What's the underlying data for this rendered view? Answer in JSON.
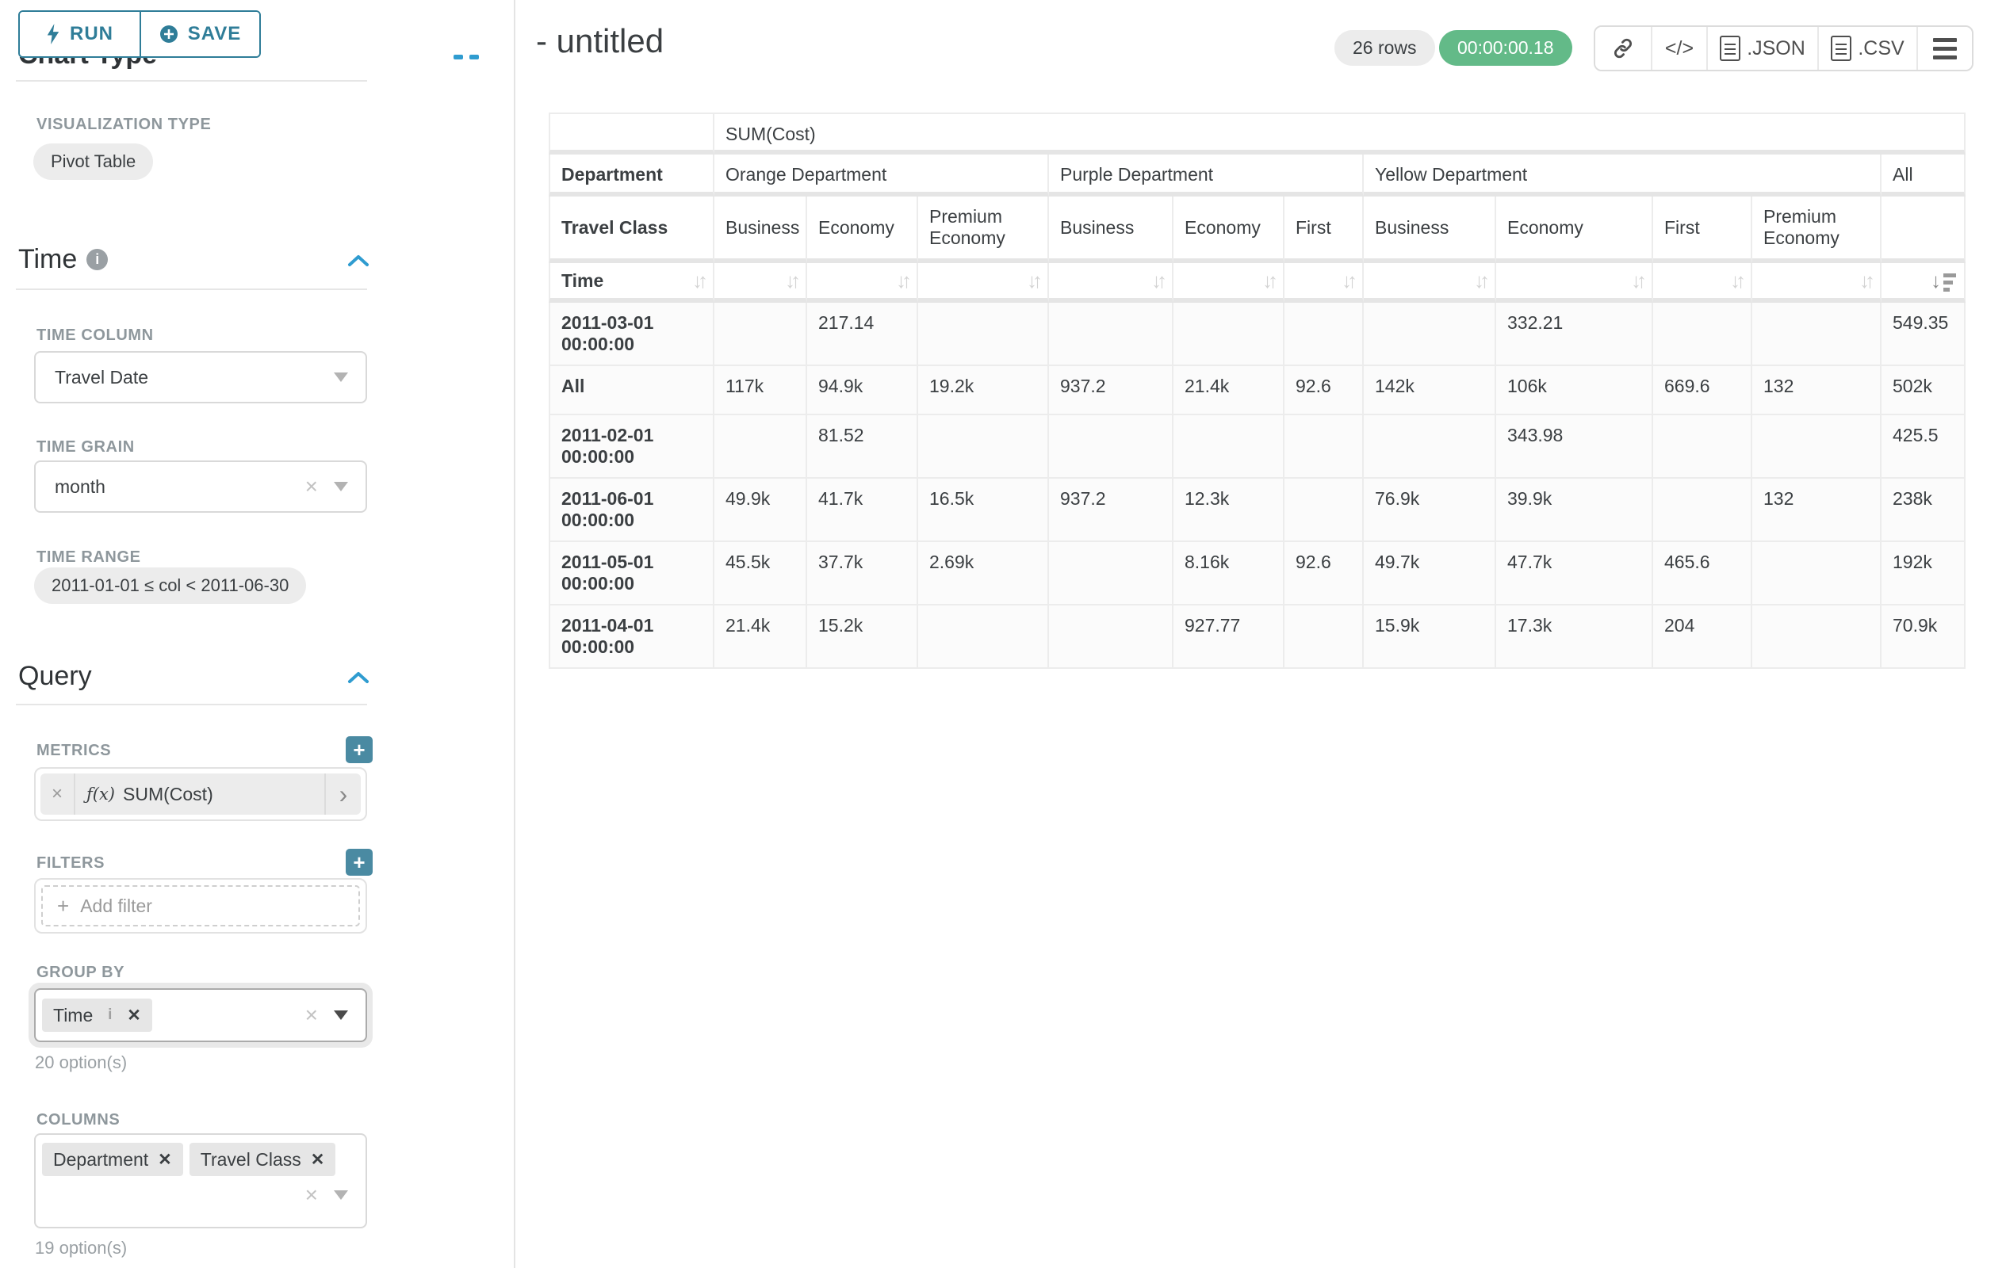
{
  "colors": {
    "accent_teal": "#2f7d98",
    "plus_teal": "#4a8aa2",
    "timer_green": "#63ba88",
    "chevron_blue": "#2f9cd0"
  },
  "sidebar": {
    "run_label": "RUN",
    "save_label": "SAVE",
    "scrolled_heading": "Chart Type",
    "viz": {
      "label": "VISUALIZATION TYPE",
      "value": "Pivot Table"
    },
    "time": {
      "heading": "Time",
      "column_label": "TIME COLUMN",
      "column_value": "Travel Date",
      "grain_label": "TIME GRAIN",
      "grain_value": "month",
      "range_label": "TIME RANGE",
      "range_value": "2011-01-01 ≤ col < 2011-06-30"
    },
    "query": {
      "heading": "Query",
      "metrics_label": "METRICS",
      "metric_fx": "ƒ(x)",
      "metric_value": "SUM(Cost)",
      "filters_label": "FILTERS",
      "add_filter": "Add filter",
      "group_by_label": "GROUP BY",
      "group_by_tags": [
        "Time"
      ],
      "group_by_hint": "20 option(s)",
      "columns_label": "COLUMNS",
      "columns_tags": [
        "Department",
        "Travel Class"
      ],
      "columns_hint": "19 option(s)"
    }
  },
  "header": {
    "title": "- untitled",
    "rows_badge": "26 rows",
    "timer": "00:00:00.18",
    "code_label": "</>",
    "json_label": ".JSON",
    "csv_label": ".CSV"
  },
  "table": {
    "metric_header": "SUM(Cost)",
    "corner": {
      "department": "Department",
      "travel_class": "Travel Class",
      "time": "Time"
    },
    "groups": [
      {
        "label": "Orange Department",
        "classes": [
          "Business",
          "Economy",
          "Premium Economy"
        ]
      },
      {
        "label": "Purple Department",
        "classes": [
          "Business",
          "Economy",
          "First"
        ]
      },
      {
        "label": "Yellow Department",
        "classes": [
          "Business",
          "Economy",
          "First",
          "Premium Economy"
        ]
      },
      {
        "label": "All",
        "classes": [
          ""
        ]
      }
    ],
    "rows": [
      {
        "label": "2011-03-01 00:00:00",
        "values": [
          "",
          "217.14",
          "",
          "",
          "",
          "",
          "",
          "332.21",
          "",
          "",
          "549.35"
        ]
      },
      {
        "label": "All",
        "values": [
          "117k",
          "94.9k",
          "19.2k",
          "937.2",
          "21.4k",
          "92.6",
          "142k",
          "106k",
          "669.6",
          "132",
          "502k"
        ]
      },
      {
        "label": "2011-02-01 00:00:00",
        "values": [
          "",
          "81.52",
          "",
          "",
          "",
          "",
          "",
          "343.98",
          "",
          "",
          "425.5"
        ]
      },
      {
        "label": "2011-06-01 00:00:00",
        "values": [
          "49.9k",
          "41.7k",
          "16.5k",
          "937.2",
          "12.3k",
          "",
          "76.9k",
          "39.9k",
          "",
          "132",
          "238k"
        ]
      },
      {
        "label": "2011-05-01 00:00:00",
        "values": [
          "45.5k",
          "37.7k",
          "2.69k",
          "",
          "8.16k",
          "92.6",
          "49.7k",
          "47.7k",
          "465.6",
          "",
          "192k"
        ]
      },
      {
        "label": "2011-04-01 00:00:00",
        "values": [
          "21.4k",
          "15.2k",
          "",
          "",
          "927.77",
          "",
          "15.9k",
          "17.3k",
          "204",
          "",
          "70.9k"
        ]
      }
    ]
  }
}
